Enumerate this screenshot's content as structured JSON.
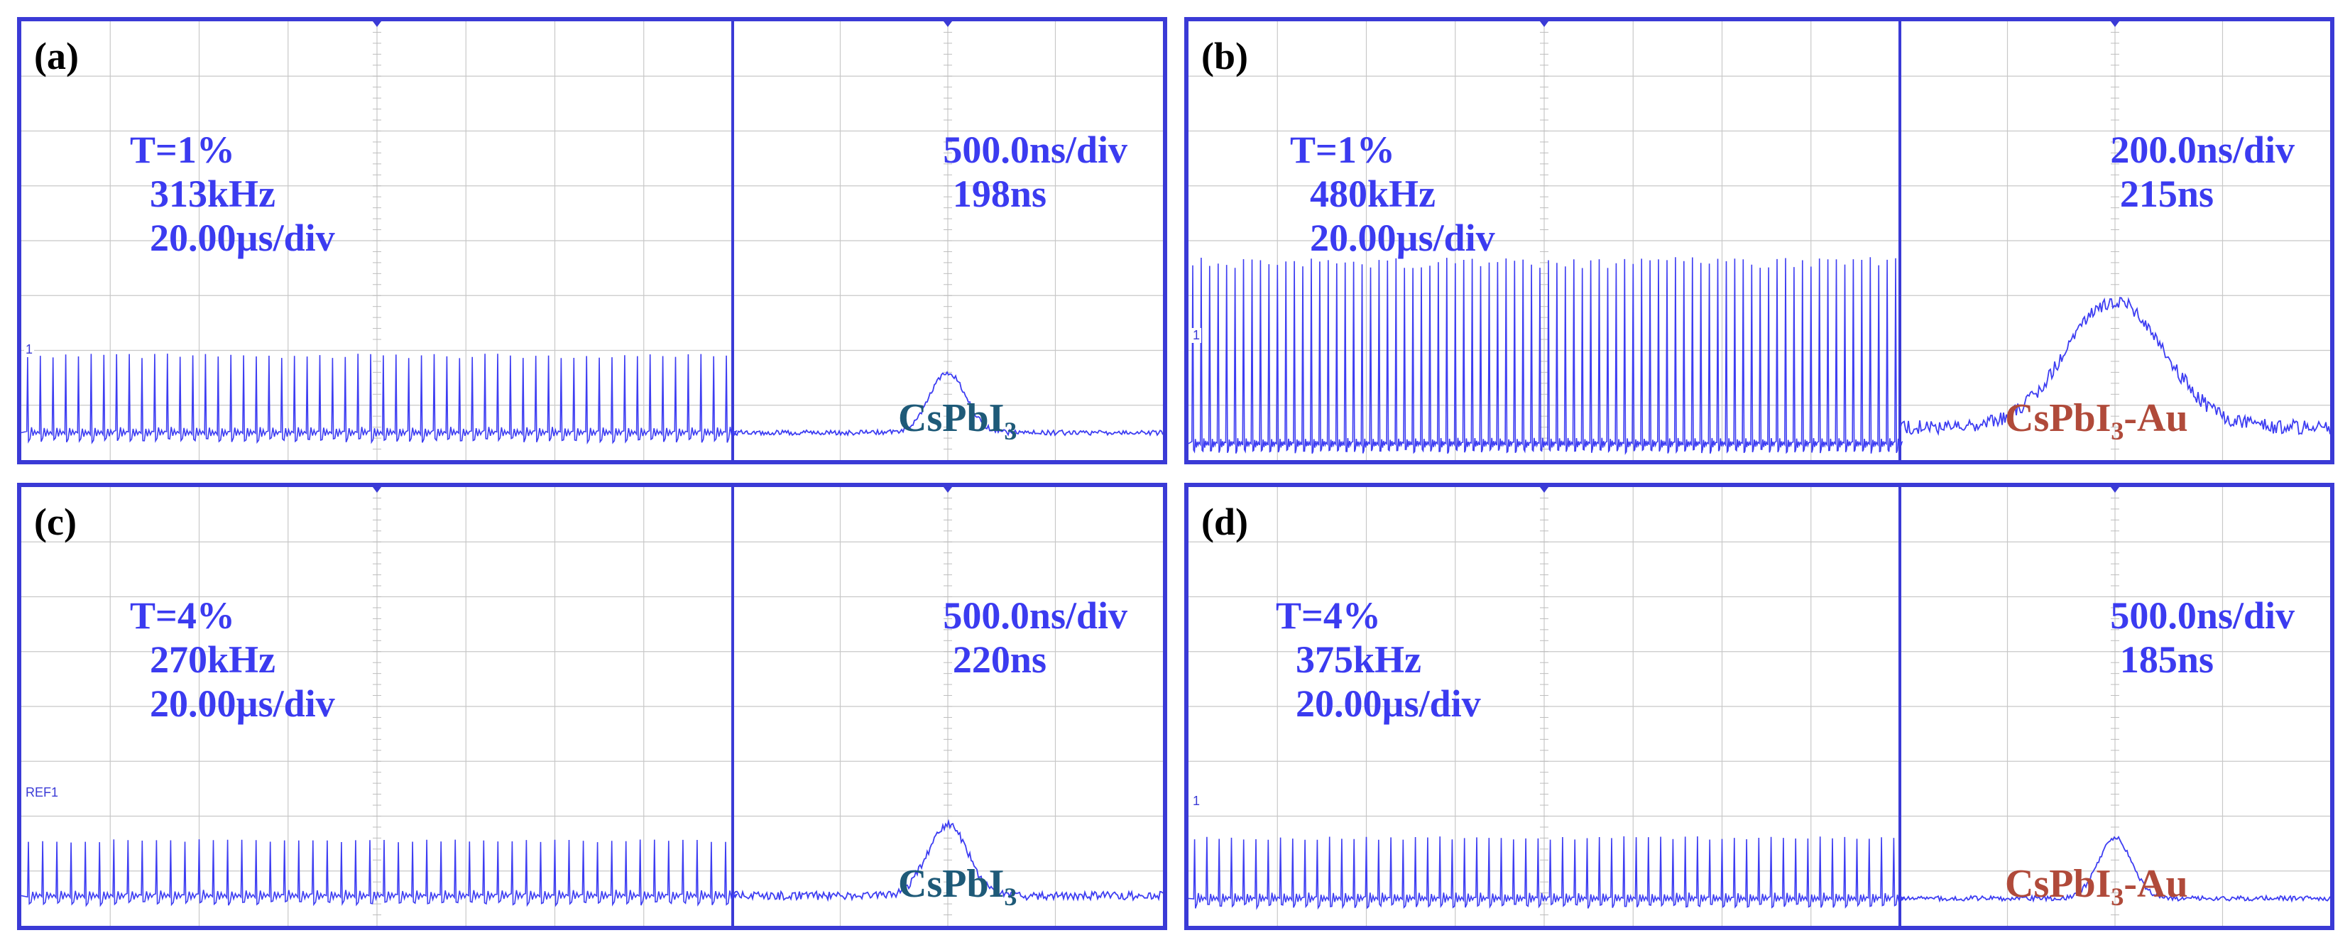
{
  "chart_data": [
    {
      "type": "line",
      "panel": "(a)",
      "label": "(a)",
      "transmittance": "T=1%",
      "frequency": "313kHz",
      "timebase_left": "20.00µs/div",
      "timebase_right": "500.0ns/div",
      "pulse_width": "198ns",
      "sample_main": "CsPbI",
      "sample_sub": "3",
      "sample_suffix": "",
      "sample_color": "#1e5a78",
      "channel_marker": "1",
      "train": {
        "pulses": 56,
        "baseline_div": 0.5,
        "peak_div": 1.9
      },
      "pulse": {
        "center_ns": 0,
        "fwhm_ns": 198,
        "timebase_ns_per_div": 500,
        "baseline_div": 0.5,
        "peak_div": 1.6,
        "noise": "low"
      }
    },
    {
      "type": "line",
      "panel": "(b)",
      "label": "(b)",
      "transmittance": "T=1%",
      "frequency": "480kHz",
      "timebase_left": "20.00µs/div",
      "timebase_right": "200.0ns/div",
      "pulse_width": "215ns",
      "sample_main": "CsPbI",
      "sample_sub": "3",
      "sample_suffix": "-Au",
      "sample_color": "#b04a3a",
      "channel_marker": "1",
      "train": {
        "pulses": 84,
        "baseline_div": 0.3,
        "peak_div": 3.6
      },
      "pulse": {
        "center_ns": 0,
        "fwhm_ns": 215,
        "timebase_ns_per_div": 200,
        "baseline_div": 0.6,
        "peak_div": 2.9,
        "noise": "high"
      }
    },
    {
      "type": "line",
      "panel": "(c)",
      "label": "(c)",
      "transmittance": "T=4%",
      "frequency": "270kHz",
      "timebase_left": "20.00µs/div",
      "timebase_right": "500.0ns/div",
      "pulse_width": "220ns",
      "sample_main": "CsPbI",
      "sample_sub": "3",
      "sample_suffix": "",
      "sample_color": "#1e5a78",
      "channel_marker": "REF1",
      "train": {
        "pulses": 50,
        "baseline_div": 0.55,
        "peak_div": 1.55
      },
      "pulse": {
        "center_ns": 0,
        "fwhm_ns": 220,
        "timebase_ns_per_div": 500,
        "baseline_div": 0.55,
        "peak_div": 1.85,
        "noise": "medium"
      }
    },
    {
      "type": "line",
      "panel": "(d)",
      "label": "(d)",
      "transmittance": "T=4%",
      "frequency": "375kHz",
      "timebase_left": "20.00µs/div",
      "timebase_right": "500.0ns/div",
      "pulse_width": "185ns",
      "sample_main": "CsPbI",
      "sample_sub": "3",
      "sample_suffix": "-Au",
      "sample_color": "#b04a3a",
      "channel_marker": "1",
      "train": {
        "pulses": 58,
        "baseline_div": 0.5,
        "peak_div": 1.6
      },
      "pulse": {
        "center_ns": 0,
        "fwhm_ns": 185,
        "timebase_ns_per_div": 500,
        "baseline_div": 0.5,
        "peak_div": 1.6,
        "noise": "low"
      }
    }
  ]
}
